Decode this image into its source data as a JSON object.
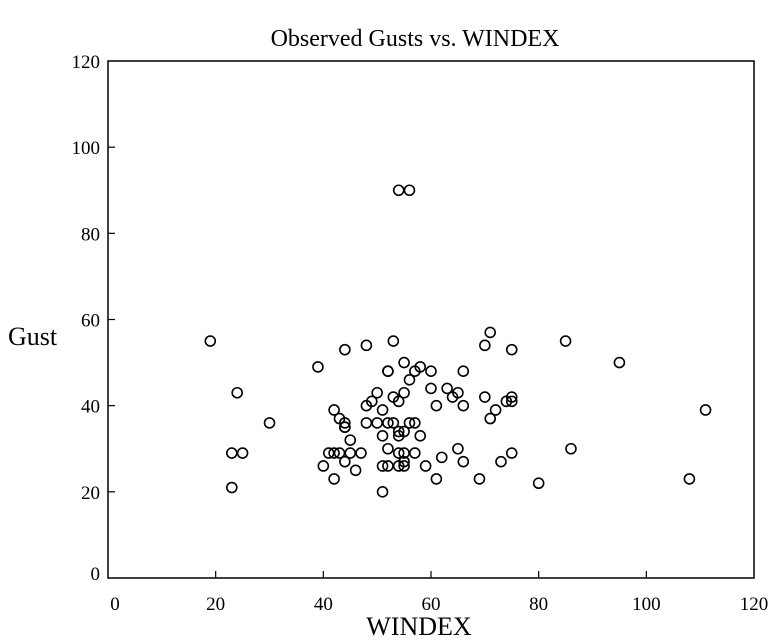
{
  "chart_data": {
    "type": "scatter",
    "title": "Observed Gusts vs. WINDEX",
    "xlabel": "WINDEX",
    "ylabel": "Gust",
    "xlim": [
      0,
      120
    ],
    "ylim": [
      0,
      120
    ],
    "xticks": [
      "0",
      "20",
      "40",
      "60",
      "80",
      "100",
      "120"
    ],
    "yticks": [
      "0",
      "20",
      "40",
      "60",
      "80",
      "100",
      "120"
    ],
    "grid": false,
    "marker": "open-circle",
    "marker_color": "#000000",
    "series": [
      {
        "points": [
          [
            19,
            55
          ],
          [
            23,
            29
          ],
          [
            23,
            21
          ],
          [
            24,
            43
          ],
          [
            25,
            29
          ],
          [
            30,
            36
          ],
          [
            39,
            49
          ],
          [
            40,
            26
          ],
          [
            41,
            29
          ],
          [
            42,
            29
          ],
          [
            42,
            23
          ],
          [
            42,
            39
          ],
          [
            43,
            37
          ],
          [
            43,
            29
          ],
          [
            44,
            36
          ],
          [
            44,
            35
          ],
          [
            44,
            35
          ],
          [
            44,
            53
          ],
          [
            44,
            27
          ],
          [
            45,
            32
          ],
          [
            45,
            29
          ],
          [
            46,
            25
          ],
          [
            47,
            29
          ],
          [
            48,
            40
          ],
          [
            48,
            36
          ],
          [
            48,
            54
          ],
          [
            49,
            41
          ],
          [
            50,
            36
          ],
          [
            50,
            43
          ],
          [
            51,
            39
          ],
          [
            51,
            33
          ],
          [
            51,
            26
          ],
          [
            51,
            20
          ],
          [
            52,
            30
          ],
          [
            52,
            48
          ],
          [
            52,
            48
          ],
          [
            52,
            36
          ],
          [
            52,
            26
          ],
          [
            53,
            42
          ],
          [
            53,
            55
          ],
          [
            53,
            36
          ],
          [
            54,
            34
          ],
          [
            54,
            33
          ],
          [
            54,
            41
          ],
          [
            54,
            29
          ],
          [
            54,
            26
          ],
          [
            54,
            90
          ],
          [
            55,
            29
          ],
          [
            55,
            26
          ],
          [
            55,
            34
          ],
          [
            55,
            43
          ],
          [
            55,
            50
          ],
          [
            55,
            27
          ],
          [
            56,
            90
          ],
          [
            56,
            46
          ],
          [
            56,
            36
          ],
          [
            57,
            48
          ],
          [
            57,
            29
          ],
          [
            57,
            36
          ],
          [
            58,
            49
          ],
          [
            58,
            33
          ],
          [
            59,
            26
          ],
          [
            60,
            48
          ],
          [
            60,
            44
          ],
          [
            61,
            40
          ],
          [
            61,
            23
          ],
          [
            62,
            28
          ],
          [
            63,
            44
          ],
          [
            64,
            42
          ],
          [
            65,
            43
          ],
          [
            65,
            30
          ],
          [
            66,
            48
          ],
          [
            66,
            40
          ],
          [
            66,
            27
          ],
          [
            69,
            23
          ],
          [
            70,
            42
          ],
          [
            70,
            54
          ],
          [
            71,
            57
          ],
          [
            71,
            37
          ],
          [
            72,
            39
          ],
          [
            73,
            27
          ],
          [
            74,
            41
          ],
          [
            75,
            42
          ],
          [
            75,
            41
          ],
          [
            75,
            53
          ],
          [
            75,
            29
          ],
          [
            80,
            22
          ],
          [
            85,
            55
          ],
          [
            86,
            30
          ],
          [
            95,
            50
          ],
          [
            108,
            23
          ],
          [
            111,
            39
          ]
        ]
      }
    ]
  }
}
